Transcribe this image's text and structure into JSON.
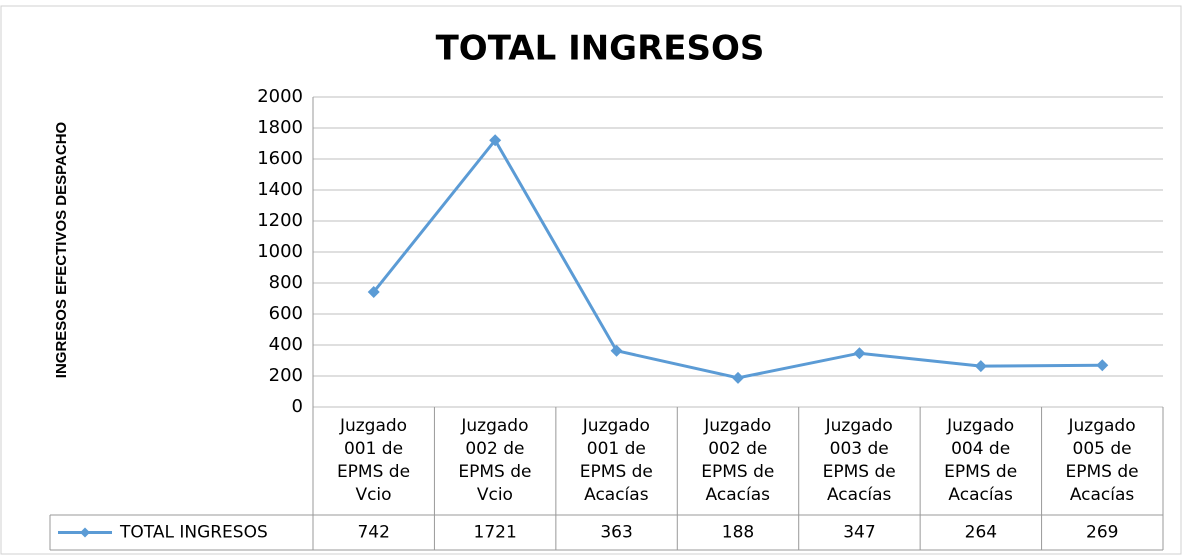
{
  "chart_data": {
    "type": "line",
    "title": "TOTAL INGRESOS",
    "y_label": "INGRESOS EFECTIVOS DESPACHO",
    "categories": [
      "Juzgado 001 de EPMS de Vcio",
      "Juzgado 002 de EPMS de Vcio",
      "Juzgado 001 de EPMS de Acacías",
      "Juzgado 002 de EPMS de Acacías",
      "Juzgado 003 de EPMS de Acacías",
      "Juzgado 004 de EPMS de Acacías",
      "Juzgado 005 de EPMS de Acacías"
    ],
    "series": [
      {
        "name": "TOTAL INGRESOS",
        "color": "#5b9bd5",
        "values": [
          742,
          1721,
          363,
          188,
          347,
          264,
          269
        ]
      }
    ],
    "ylim": [
      0,
      2000
    ],
    "yticks": [
      0,
      200,
      400,
      600,
      800,
      1000,
      1200,
      1400,
      1600,
      1800,
      2000
    ],
    "grid": true
  }
}
